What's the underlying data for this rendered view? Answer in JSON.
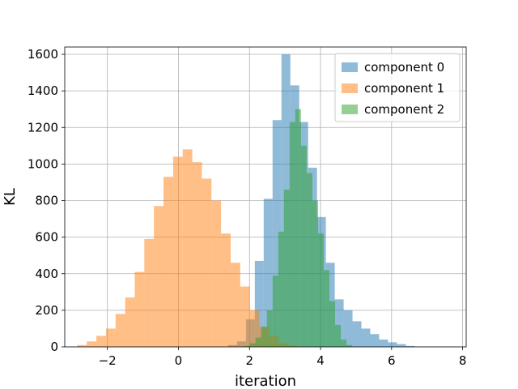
{
  "chart_data": {
    "type": "bar",
    "subtype": "histogram",
    "xlabel": "iteration",
    "ylabel": "KL",
    "xlim": [
      -3.2,
      8.1
    ],
    "ylim": [
      0,
      1640
    ],
    "xticks": [
      -2,
      0,
      2,
      4,
      6,
      8
    ],
    "xtick_labels": [
      "−2",
      "0",
      "2",
      "4",
      "6",
      "8"
    ],
    "yticks": [
      0,
      200,
      400,
      600,
      800,
      1000,
      1200,
      1400,
      1600
    ],
    "ytick_labels": [
      "0",
      "200",
      "400",
      "600",
      "800",
      "1000",
      "1200",
      "1400",
      "1600"
    ],
    "grid": true,
    "legend_position": "top-right",
    "series": [
      {
        "name": "component 0",
        "color": "#1f77b4",
        "alpha": 0.5,
        "bin_width": 0.25,
        "bin_starts": [
          1.4,
          1.65,
          1.9,
          2.15,
          2.4,
          2.65,
          2.9,
          3.15,
          3.4,
          3.65,
          3.9,
          4.15,
          4.4,
          4.65,
          4.9,
          5.15,
          5.4,
          5.65,
          5.9,
          6.15,
          6.4
        ],
        "values": [
          10,
          30,
          150,
          470,
          810,
          1240,
          1600,
          1430,
          1230,
          980,
          710,
          460,
          260,
          200,
          140,
          100,
          70,
          40,
          25,
          15,
          5
        ]
      },
      {
        "name": "component 1",
        "color": "#ff7f0e",
        "alpha": 0.5,
        "bin_width": 0.27,
        "bin_starts": [
          -2.85,
          -2.58,
          -2.31,
          -2.04,
          -1.77,
          -1.5,
          -1.23,
          -0.96,
          -0.69,
          -0.42,
          -0.15,
          0.12,
          0.39,
          0.66,
          0.93,
          1.2,
          1.47,
          1.74,
          2.01,
          2.28,
          2.55,
          2.82,
          3.09
        ],
        "values": [
          10,
          30,
          60,
          100,
          180,
          270,
          410,
          590,
          770,
          930,
          1040,
          1080,
          1010,
          920,
          800,
          620,
          460,
          330,
          200,
          110,
          60,
          20,
          10
        ]
      },
      {
        "name": "component 2",
        "color": "#2ca02c",
        "alpha": 0.5,
        "bin_width": 0.16,
        "bin_starts": [
          1.85,
          2.01,
          2.17,
          2.33,
          2.49,
          2.65,
          2.81,
          2.97,
          3.13,
          3.29,
          3.45,
          3.61,
          3.77,
          3.93,
          4.09,
          4.25,
          4.41,
          4.57,
          4.73
        ],
        "values": [
          5,
          20,
          50,
          110,
          200,
          390,
          630,
          860,
          1230,
          1300,
          1100,
          950,
          800,
          620,
          420,
          250,
          120,
          40,
          10
        ]
      }
    ]
  }
}
